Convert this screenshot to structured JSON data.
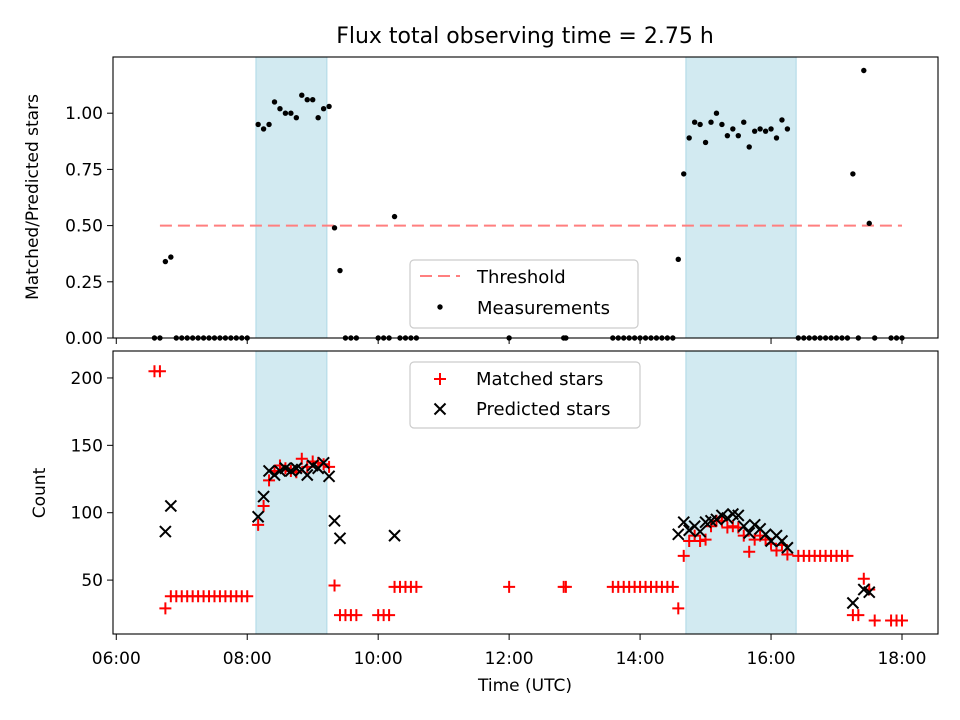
{
  "title": "Flux total observing time = 2.75 h",
  "colors": {
    "threshold": "#ff7f7f",
    "measurement": "#000000",
    "matched": "#ff0000",
    "predicted": "#000000",
    "shade": "#add8e6"
  },
  "chart_data": [
    {
      "type": "scatter",
      "ylabel": "Matched/Predicted stars",
      "ylim": [
        0,
        1.25
      ],
      "xlim": [
        "05:57",
        "18:33"
      ],
      "yticks": [
        "0.00",
        "0.25",
        "0.50",
        "0.75",
        "1.00"
      ],
      "shaded_intervals": [
        [
          "08:08",
          "09:13"
        ],
        [
          "14:42",
          "16:23"
        ]
      ],
      "threshold": {
        "name": "Threshold",
        "value": 0.5,
        "x": [
          "06:40",
          "18:00"
        ]
      },
      "legend": {
        "placement": "lower center",
        "entries": [
          "Threshold",
          "Measurements"
        ]
      },
      "series": [
        {
          "name": "Measurements",
          "points": [
            [
              "06:35",
              0
            ],
            [
              "06:40",
              0
            ],
            [
              "06:45",
              0.34
            ],
            [
              "06:50",
              0.36
            ],
            [
              "06:55",
              0
            ],
            [
              "07:00",
              0
            ],
            [
              "07:05",
              0
            ],
            [
              "07:10",
              0
            ],
            [
              "07:15",
              0
            ],
            [
              "07:20",
              0
            ],
            [
              "07:25",
              0
            ],
            [
              "07:30",
              0
            ],
            [
              "07:35",
              0
            ],
            [
              "07:40",
              0
            ],
            [
              "07:45",
              0
            ],
            [
              "07:50",
              0
            ],
            [
              "07:55",
              0
            ],
            [
              "08:00",
              0
            ],
            [
              "08:10",
              0.95
            ],
            [
              "08:15",
              0.93
            ],
            [
              "08:20",
              0.95
            ],
            [
              "08:25",
              1.05
            ],
            [
              "08:30",
              1.02
            ],
            [
              "08:35",
              1.0
            ],
            [
              "08:40",
              1.0
            ],
            [
              "08:45",
              0.98
            ],
            [
              "08:50",
              1.08
            ],
            [
              "08:55",
              1.06
            ],
            [
              "09:00",
              1.06
            ],
            [
              "09:05",
              0.98
            ],
            [
              "09:10",
              1.02
            ],
            [
              "09:15",
              1.03
            ],
            [
              "09:20",
              0.49
            ],
            [
              "09:25",
              0.3
            ],
            [
              "09:30",
              0
            ],
            [
              "09:35",
              0
            ],
            [
              "09:40",
              0
            ],
            [
              "10:00",
              0
            ],
            [
              "10:05",
              0
            ],
            [
              "10:10",
              0
            ],
            [
              "10:15",
              0.54
            ],
            [
              "10:20",
              0
            ],
            [
              "10:25",
              0
            ],
            [
              "10:30",
              0
            ],
            [
              "10:35",
              0
            ],
            [
              "12:00",
              0
            ],
            [
              "12:50",
              0
            ],
            [
              "12:52",
              0
            ],
            [
              "13:35",
              0
            ],
            [
              "13:40",
              0
            ],
            [
              "13:45",
              0
            ],
            [
              "13:50",
              0
            ],
            [
              "13:55",
              0
            ],
            [
              "14:00",
              0
            ],
            [
              "14:05",
              0
            ],
            [
              "14:10",
              0
            ],
            [
              "14:15",
              0
            ],
            [
              "14:20",
              0
            ],
            [
              "14:25",
              0
            ],
            [
              "14:30",
              0
            ],
            [
              "14:35",
              0.35
            ],
            [
              "14:40",
              0.73
            ],
            [
              "14:45",
              0.89
            ],
            [
              "14:50",
              0.96
            ],
            [
              "14:55",
              0.95
            ],
            [
              "15:00",
              0.87
            ],
            [
              "15:05",
              0.96
            ],
            [
              "15:10",
              1.0
            ],
            [
              "15:15",
              0.95
            ],
            [
              "15:20",
              0.9
            ],
            [
              "15:25",
              0.93
            ],
            [
              "15:30",
              0.9
            ],
            [
              "15:35",
              0.96
            ],
            [
              "15:40",
              0.85
            ],
            [
              "15:45",
              0.92
            ],
            [
              "15:50",
              0.93
            ],
            [
              "15:55",
              0.92
            ],
            [
              "16:00",
              0.93
            ],
            [
              "16:05",
              0.89
            ],
            [
              "16:10",
              0.97
            ],
            [
              "16:15",
              0.93
            ],
            [
              "16:25",
              0
            ],
            [
              "16:30",
              0
            ],
            [
              "16:35",
              0
            ],
            [
              "16:40",
              0
            ],
            [
              "16:45",
              0
            ],
            [
              "16:50",
              0
            ],
            [
              "16:55",
              0
            ],
            [
              "17:00",
              0
            ],
            [
              "17:05",
              0
            ],
            [
              "17:10",
              0
            ],
            [
              "17:15",
              0.73
            ],
            [
              "17:20",
              0
            ],
            [
              "17:25",
              1.19
            ],
            [
              "17:30",
              0.51
            ],
            [
              "17:35",
              0
            ],
            [
              "17:50",
              0
            ],
            [
              "17:55",
              0
            ],
            [
              "18:00",
              0
            ]
          ]
        }
      ]
    },
    {
      "type": "scatter",
      "xlabel": "Time (UTC)",
      "ylabel": "Count",
      "ylim": [
        10,
        220
      ],
      "xlim": [
        "05:57",
        "18:33"
      ],
      "xticks": [
        "06:00",
        "08:00",
        "10:00",
        "12:00",
        "14:00",
        "16:00",
        "18:00"
      ],
      "yticks": [
        "50",
        "100",
        "150",
        "200"
      ],
      "shaded_intervals": [
        [
          "08:08",
          "09:13"
        ],
        [
          "14:42",
          "16:23"
        ]
      ],
      "legend": {
        "placement": "upper center",
        "entries": [
          "Matched stars",
          "Predicted stars"
        ]
      },
      "series": [
        {
          "name": "Matched stars",
          "marker": "+",
          "points": [
            [
              "06:35",
              205
            ],
            [
              "06:40",
              205
            ],
            [
              "06:45",
              29
            ],
            [
              "06:50",
              38
            ],
            [
              "06:55",
              38
            ],
            [
              "07:00",
              38
            ],
            [
              "07:05",
              38
            ],
            [
              "07:10",
              38
            ],
            [
              "07:15",
              38
            ],
            [
              "07:20",
              38
            ],
            [
              "07:25",
              38
            ],
            [
              "07:30",
              38
            ],
            [
              "07:35",
              38
            ],
            [
              "07:40",
              38
            ],
            [
              "07:45",
              38
            ],
            [
              "07:50",
              38
            ],
            [
              "07:55",
              38
            ],
            [
              "08:00",
              38
            ],
            [
              "08:10",
              91
            ],
            [
              "08:15",
              105
            ],
            [
              "08:20",
              124
            ],
            [
              "08:25",
              131
            ],
            [
              "08:30",
              135
            ],
            [
              "08:35",
              133
            ],
            [
              "08:40",
              131
            ],
            [
              "08:45",
              130
            ],
            [
              "08:50",
              140
            ],
            [
              "08:55",
              134
            ],
            [
              "09:00",
              138
            ],
            [
              "09:05",
              137
            ],
            [
              "09:10",
              136
            ],
            [
              "09:15",
              134
            ],
            [
              "09:20",
              46
            ],
            [
              "09:25",
              24
            ],
            [
              "09:30",
              24
            ],
            [
              "09:35",
              24
            ],
            [
              "09:40",
              24
            ],
            [
              "10:00",
              24
            ],
            [
              "10:05",
              24
            ],
            [
              "10:10",
              24
            ],
            [
              "10:15",
              45
            ],
            [
              "10:20",
              45
            ],
            [
              "10:25",
              45
            ],
            [
              "10:30",
              45
            ],
            [
              "10:35",
              45
            ],
            [
              "12:00",
              45
            ],
            [
              "12:50",
              45
            ],
            [
              "12:52",
              45
            ],
            [
              "13:35",
              45
            ],
            [
              "13:40",
              45
            ],
            [
              "13:45",
              45
            ],
            [
              "13:50",
              45
            ],
            [
              "13:55",
              45
            ],
            [
              "14:00",
              45
            ],
            [
              "14:05",
              45
            ],
            [
              "14:10",
              45
            ],
            [
              "14:15",
              45
            ],
            [
              "14:20",
              45
            ],
            [
              "14:25",
              45
            ],
            [
              "14:30",
              45
            ],
            [
              "14:35",
              29
            ],
            [
              "14:40",
              68
            ],
            [
              "14:45",
              79
            ],
            [
              "14:50",
              83
            ],
            [
              "14:55",
              79
            ],
            [
              "15:00",
              80
            ],
            [
              "15:05",
              90
            ],
            [
              "15:10",
              94
            ],
            [
              "15:15",
              94
            ],
            [
              "15:20",
              89
            ],
            [
              "15:25",
              90
            ],
            [
              "15:30",
              89
            ],
            [
              "15:35",
              83
            ],
            [
              "15:40",
              71
            ],
            [
              "15:45",
              80
            ],
            [
              "15:50",
              83
            ],
            [
              "15:55",
              80
            ],
            [
              "16:00",
              77
            ],
            [
              "16:05",
              72
            ],
            [
              "16:10",
              76
            ],
            [
              "16:15",
              69
            ],
            [
              "16:25",
              68
            ],
            [
              "16:30",
              68
            ],
            [
              "16:35",
              68
            ],
            [
              "16:40",
              68
            ],
            [
              "16:45",
              68
            ],
            [
              "16:50",
              68
            ],
            [
              "16:55",
              68
            ],
            [
              "17:00",
              68
            ],
            [
              "17:05",
              68
            ],
            [
              "17:10",
              68
            ],
            [
              "17:15",
              24
            ],
            [
              "17:20",
              24
            ],
            [
              "17:25",
              51
            ],
            [
              "17:30",
              43
            ],
            [
              "17:35",
              20
            ],
            [
              "17:50",
              20
            ],
            [
              "17:55",
              20
            ],
            [
              "18:00",
              20
            ]
          ]
        },
        {
          "name": "Predicted stars",
          "marker": "x",
          "points": [
            [
              "06:45",
              86
            ],
            [
              "06:50",
              105
            ],
            [
              "08:10",
              97
            ],
            [
              "08:15",
              112
            ],
            [
              "08:20",
              131
            ],
            [
              "08:25",
              128
            ],
            [
              "08:30",
              131
            ],
            [
              "08:35",
              133
            ],
            [
              "08:40",
              131
            ],
            [
              "08:45",
              133
            ],
            [
              "08:50",
              132
            ],
            [
              "08:55",
              128
            ],
            [
              "09:00",
              135
            ],
            [
              "09:05",
              133
            ],
            [
              "09:10",
              137
            ],
            [
              "09:15",
              127
            ],
            [
              "09:20",
              94
            ],
            [
              "09:25",
              81
            ],
            [
              "10:15",
              83
            ],
            [
              "14:35",
              84
            ],
            [
              "14:40",
              93
            ],
            [
              "14:45",
              87
            ],
            [
              "14:50",
              90
            ],
            [
              "14:55",
              86
            ],
            [
              "15:00",
              93
            ],
            [
              "15:05",
              94
            ],
            [
              "15:10",
              95
            ],
            [
              "15:15",
              98
            ],
            [
              "15:20",
              96
            ],
            [
              "15:25",
              99
            ],
            [
              "15:30",
              98
            ],
            [
              "15:35",
              90
            ],
            [
              "15:40",
              85
            ],
            [
              "15:45",
              91
            ],
            [
              "15:50",
              88
            ],
            [
              "15:55",
              84
            ],
            [
              "16:00",
              79
            ],
            [
              "16:05",
              83
            ],
            [
              "16:10",
              79
            ],
            [
              "16:15",
              74
            ],
            [
              "17:15",
              33
            ],
            [
              "17:25",
              43
            ],
            [
              "17:30",
              41
            ]
          ]
        }
      ]
    }
  ]
}
